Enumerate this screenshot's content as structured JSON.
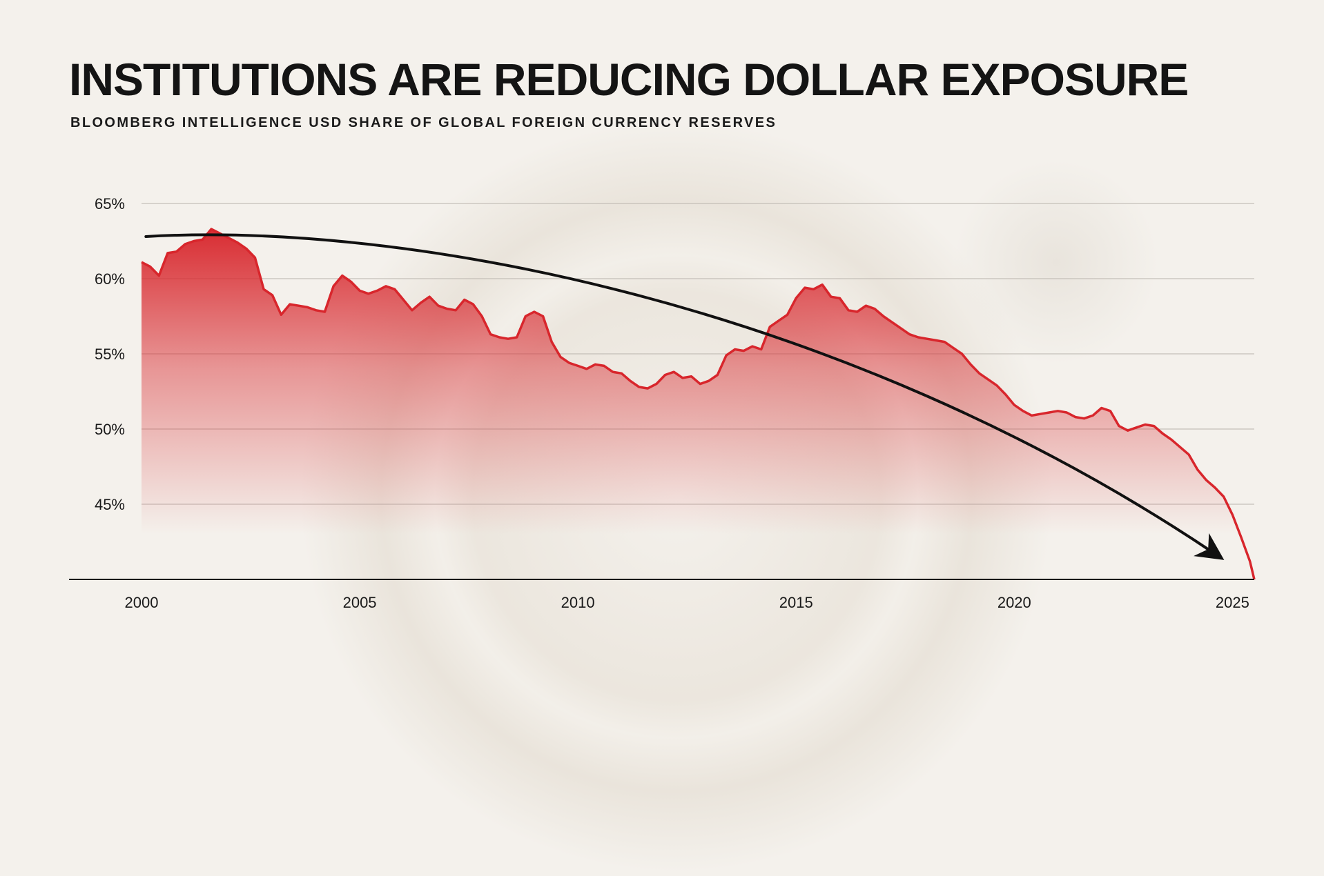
{
  "chart_data": {
    "type": "area",
    "title": "INSTITUTIONS ARE REDUCING DOLLAR EXPOSURE",
    "subtitle": "BLOOMBERG INTELLIGENCE USD SHARE OF GLOBAL FOREIGN CURRENCY RESERVES",
    "xlabel": "",
    "ylabel": "",
    "x_ticks": [
      "2000",
      "2005",
      "2010",
      "2015",
      "2020",
      "2025"
    ],
    "y_ticks": [
      "45%",
      "50%",
      "55%",
      "60%",
      "65%"
    ],
    "xlim": [
      2000,
      2025.5
    ],
    "ylim": [
      40,
      65
    ],
    "grid": true,
    "colors": {
      "line": "#d8262c",
      "fill_top": "#d8262c",
      "arrow": "#111111",
      "text": "#141414"
    },
    "series": [
      {
        "x": [
          2000.0,
          2000.2,
          2000.4,
          2000.6,
          2000.8,
          2001.0,
          2001.2,
          2001.4,
          2001.6,
          2001.8,
          2002.0,
          2002.2,
          2002.4,
          2002.6,
          2002.8,
          2003.0,
          2003.2,
          2003.4,
          2003.6,
          2003.8,
          2004.0,
          2004.2,
          2004.4,
          2004.6,
          2004.8,
          2005.0,
          2005.2,
          2005.4,
          2005.6,
          2005.8,
          2006.0,
          2006.2,
          2006.4,
          2006.6,
          2006.8,
          2007.0,
          2007.2,
          2007.4,
          2007.6,
          2007.8,
          2008.0,
          2008.2,
          2008.4,
          2008.6,
          2008.8,
          2009.0,
          2009.2,
          2009.4,
          2009.6,
          2009.8,
          2010.0,
          2010.2,
          2010.4,
          2010.6,
          2010.8,
          2011.0,
          2011.2,
          2011.4,
          2011.6,
          2011.8,
          2012.0,
          2012.2,
          2012.4,
          2012.6,
          2012.8,
          2013.0,
          2013.2,
          2013.4,
          2013.6,
          2013.8,
          2014.0,
          2014.2,
          2014.4,
          2014.6,
          2014.8,
          2015.0,
          2015.2,
          2015.4,
          2015.6,
          2015.8,
          2016.0,
          2016.2,
          2016.4,
          2016.6,
          2016.8,
          2017.0,
          2017.2,
          2017.4,
          2017.6,
          2017.8,
          2018.0,
          2018.2,
          2018.4,
          2018.6,
          2018.8,
          2019.0,
          2019.2,
          2019.4,
          2019.6,
          2019.8,
          2020.0,
          2020.2,
          2020.4,
          2020.6,
          2020.8,
          2021.0,
          2021.2,
          2021.4,
          2021.6,
          2021.8,
          2022.0,
          2022.2,
          2022.4,
          2022.6,
          2022.8,
          2023.0,
          2023.2,
          2023.4,
          2023.6,
          2023.8,
          2024.0,
          2024.2,
          2024.4,
          2024.6,
          2024.8,
          2025.0,
          2025.2,
          2025.4,
          2025.5
        ],
        "values": [
          61.1,
          60.8,
          60.2,
          61.7,
          61.8,
          62.3,
          62.5,
          62.6,
          63.3,
          63.0,
          62.7,
          62.4,
          62.0,
          61.4,
          59.3,
          58.9,
          57.6,
          58.3,
          58.2,
          58.1,
          57.9,
          57.8,
          59.5,
          60.2,
          59.8,
          59.2,
          59.0,
          59.2,
          59.5,
          59.3,
          58.6,
          57.9,
          58.4,
          58.8,
          58.2,
          58.0,
          57.9,
          58.6,
          58.3,
          57.5,
          56.3,
          56.1,
          56.0,
          56.1,
          57.5,
          57.8,
          57.5,
          55.8,
          54.8,
          54.4,
          54.2,
          54.0,
          54.3,
          54.2,
          53.8,
          53.7,
          53.2,
          52.8,
          52.7,
          53.0,
          53.6,
          53.8,
          53.4,
          53.5,
          53.0,
          53.2,
          53.6,
          54.9,
          55.3,
          55.2,
          55.5,
          55.3,
          56.8,
          57.2,
          57.6,
          58.7,
          59.4,
          59.3,
          59.6,
          58.8,
          58.7,
          57.9,
          57.8,
          58.2,
          58.0,
          57.5,
          57.1,
          56.7,
          56.3,
          56.1,
          56.0,
          55.9,
          55.8,
          55.4,
          55.0,
          54.3,
          53.7,
          53.3,
          52.9,
          52.3,
          51.6,
          51.2,
          50.9,
          51.0,
          51.1,
          51.2,
          51.1,
          50.8,
          50.7,
          50.9,
          51.4,
          51.2,
          50.2,
          49.9,
          50.1,
          50.3,
          50.2,
          49.7,
          49.3,
          48.8,
          48.3,
          47.3,
          46.6,
          46.1,
          45.5,
          44.3,
          42.8,
          41.2,
          40.0
        ]
      }
    ],
    "annotation": "curved trend arrow pointing down to 2025"
  }
}
